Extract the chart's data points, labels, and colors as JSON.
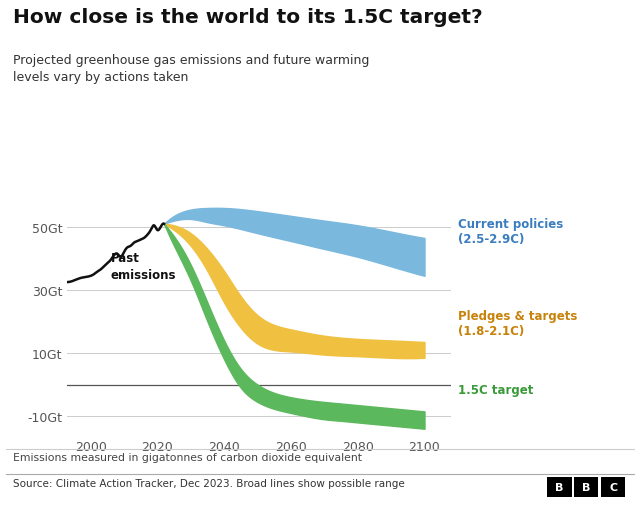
{
  "title": "How close is the world to its 1.5C target?",
  "subtitle": "Projected greenhouse gas emissions and future warming\nlevels vary by actions taken",
  "xlabel_note": "Emissions measured in gigatonnes of carbon dioxide equivalent",
  "source_note": "Source: Climate Action Tracker, Dec 2023. Broad lines show possible range",
  "ylabel_ticks": [
    -10,
    10,
    30,
    50
  ],
  "ylabel_labels": [
    "-10Gt",
    "10Gt",
    "30Gt",
    "50Gt"
  ],
  "xlim": [
    1993,
    2108
  ],
  "ylim": [
    -16,
    60
  ],
  "background_color": "#ffffff",
  "past_emissions_color": "#111111",
  "current_policies_color": "#7ab8de",
  "pledges_color": "#f0c040",
  "target_color": "#5cb85c",
  "zero_line_color": "#555555",
  "past_years": [
    1993,
    1995,
    1997,
    1999,
    2001,
    2002,
    2003,
    2004,
    2005,
    2006,
    2007,
    2008,
    2009,
    2010,
    2011,
    2012,
    2013,
    2014,
    2015,
    2016,
    2017,
    2018,
    2019,
    2020,
    2021,
    2022
  ],
  "past_values": [
    32.5,
    33.0,
    33.8,
    34.2,
    35.0,
    35.8,
    36.5,
    37.5,
    38.5,
    39.5,
    41.0,
    41.5,
    40.5,
    42.0,
    43.5,
    44.0,
    45.0,
    45.5,
    46.0,
    46.5,
    47.5,
    49.0,
    50.5,
    49.0,
    50.0,
    51.0
  ],
  "cp_upper_years": [
    2022,
    2025,
    2030,
    2035,
    2040,
    2050,
    2060,
    2070,
    2080,
    2090,
    2100
  ],
  "cp_upper_values": [
    51.0,
    53.5,
    55.5,
    56.0,
    56.0,
    55.0,
    53.5,
    52.0,
    50.5,
    48.5,
    46.5
  ],
  "cp_lower_years": [
    2022,
    2025,
    2030,
    2035,
    2040,
    2050,
    2060,
    2070,
    2080,
    2090,
    2100
  ],
  "cp_lower_values": [
    51.0,
    52.0,
    52.5,
    51.5,
    50.5,
    48.0,
    45.5,
    43.0,
    40.5,
    37.5,
    34.5
  ],
  "pt_upper_years": [
    2022,
    2025,
    2030,
    2035,
    2040,
    2045,
    2050,
    2060,
    2070,
    2080,
    2090,
    2100
  ],
  "pt_upper_values": [
    51.0,
    50.5,
    48.0,
    43.0,
    36.0,
    28.0,
    22.0,
    17.5,
    15.5,
    14.5,
    14.0,
    13.5
  ],
  "pt_lower_years": [
    2022,
    2025,
    2030,
    2035,
    2040,
    2045,
    2050,
    2060,
    2070,
    2080,
    2090,
    2100
  ],
  "pt_lower_values": [
    51.0,
    49.0,
    44.0,
    36.0,
    26.0,
    18.0,
    13.0,
    10.5,
    9.5,
    9.0,
    8.5,
    8.5
  ],
  "target_upper_years": [
    2022,
    2025,
    2030,
    2035,
    2040,
    2045,
    2050,
    2060,
    2070,
    2075,
    2080,
    2090,
    2100
  ],
  "target_upper_values": [
    51.0,
    47.0,
    38.0,
    26.0,
    14.0,
    5.0,
    0.0,
    -4.0,
    -5.5,
    -6.0,
    -6.5,
    -7.5,
    -8.5
  ],
  "target_lower_years": [
    2022,
    2025,
    2030,
    2035,
    2040,
    2045,
    2050,
    2060,
    2070,
    2075,
    2080,
    2090,
    2100
  ],
  "target_lower_values": [
    51.0,
    44.0,
    33.0,
    20.0,
    8.0,
    -1.0,
    -5.5,
    -9.0,
    -11.0,
    -11.5,
    -12.0,
    -13.0,
    -14.0
  ],
  "label_cp": "Current policies\n(2.5-2.9C)",
  "label_pt": "Pledges & targets\n(1.8-2.1C)",
  "label_15": "1.5C target",
  "label_past": "Past\nemissions",
  "cp_label_color": "#3a7dbf",
  "pt_label_color": "#c8820a",
  "target_label_color": "#3a9a3a",
  "past_label_color": "#111111"
}
